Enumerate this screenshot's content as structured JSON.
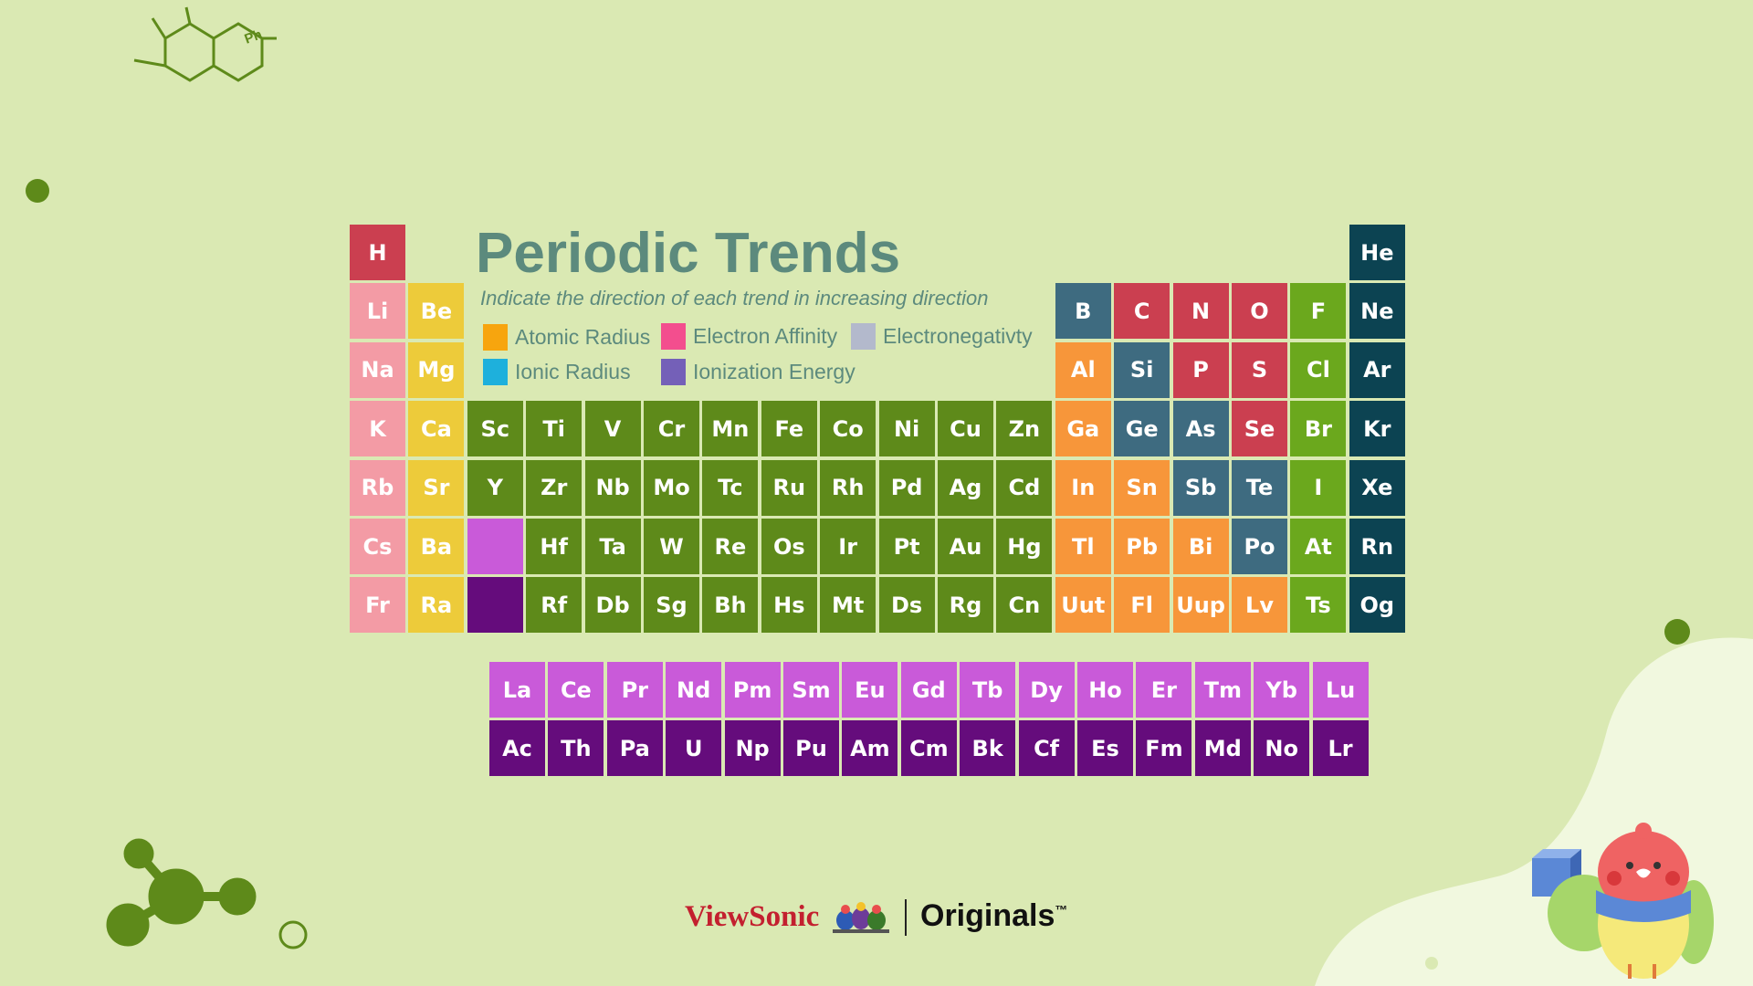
{
  "title": "Periodic Trends",
  "subtitle": "Indicate the direction of each trend in increasing direction",
  "legend": [
    {
      "label": "Atomic Radius",
      "color": "#f7a50e"
    },
    {
      "label": "Electron Affinity",
      "color": "#f34e8e"
    },
    {
      "label": "Electronegativty",
      "color": "#b3b9cc"
    },
    {
      "label": "Ionic Radius",
      "color": "#1eb0dc"
    },
    {
      "label": "Ionization Energy",
      "color": "#7460b8"
    }
  ],
  "colors": {
    "background": "#dae9b3",
    "hydrogen": "#cb3f50",
    "alkali": "#f39ba5",
    "alkaline_earth": "#edcb3a",
    "transition": "#5e8a1a",
    "post_transition": "#f7963a",
    "metalloid": "#3e6b80",
    "nonmetal": "#cb3f50",
    "halogen": "#6ba81d",
    "noble_gas": "#0c4352",
    "lanthanide": "#c95ad9",
    "actinide": "#650c7c"
  },
  "elements": {
    "row1": [
      "H",
      "He"
    ],
    "row2": [
      "Li",
      "Be",
      "B",
      "C",
      "N",
      "O",
      "F",
      "Ne"
    ],
    "row3": [
      "Na",
      "Mg",
      "Al",
      "Si",
      "P",
      "S",
      "Cl",
      "Ar"
    ],
    "row4": [
      "K",
      "Ca",
      "Sc",
      "Ti",
      "V",
      "Cr",
      "Mn",
      "Fe",
      "Co",
      "Ni",
      "Cu",
      "Zn",
      "Ga",
      "Ge",
      "As",
      "Se",
      "Br",
      "Kr"
    ],
    "row5": [
      "Rb",
      "Sr",
      "Y",
      "Zr",
      "Nb",
      "Mo",
      "Tc",
      "Ru",
      "Rh",
      "Pd",
      "Ag",
      "Cd",
      "In",
      "Sn",
      "Sb",
      "Te",
      "I",
      "Xe"
    ],
    "row6": [
      "Cs",
      "Ba",
      "",
      "Hf",
      "Ta",
      "W",
      "Re",
      "Os",
      "Ir",
      "Pt",
      "Au",
      "Hg",
      "Tl",
      "Pb",
      "Bi",
      "Po",
      "At",
      "Rn"
    ],
    "row7": [
      "Fr",
      "Ra",
      "",
      "Rf",
      "Db",
      "Sg",
      "Bh",
      "Hs",
      "Mt",
      "Ds",
      "Rg",
      "Cn",
      "Uut",
      "Fl",
      "Uup",
      "Lv",
      "Ts",
      "Og"
    ],
    "lanthanides": [
      "La",
      "Ce",
      "Pr",
      "Nd",
      "Pm",
      "Sm",
      "Eu",
      "Gd",
      "Tb",
      "Dy",
      "Ho",
      "Er",
      "Tm",
      "Yb",
      "Lu"
    ],
    "actinides": [
      "Ac",
      "Th",
      "Pa",
      "U",
      "Np",
      "Pu",
      "Am",
      "Cm",
      "Bk",
      "Cf",
      "Es",
      "Fm",
      "Md",
      "No",
      "Lr"
    ]
  },
  "decor": {
    "molecule_label": "Ph"
  },
  "footer": {
    "brand": "ViewSonic",
    "divider": "|",
    "originals": "Originals",
    "trademark": "™"
  }
}
